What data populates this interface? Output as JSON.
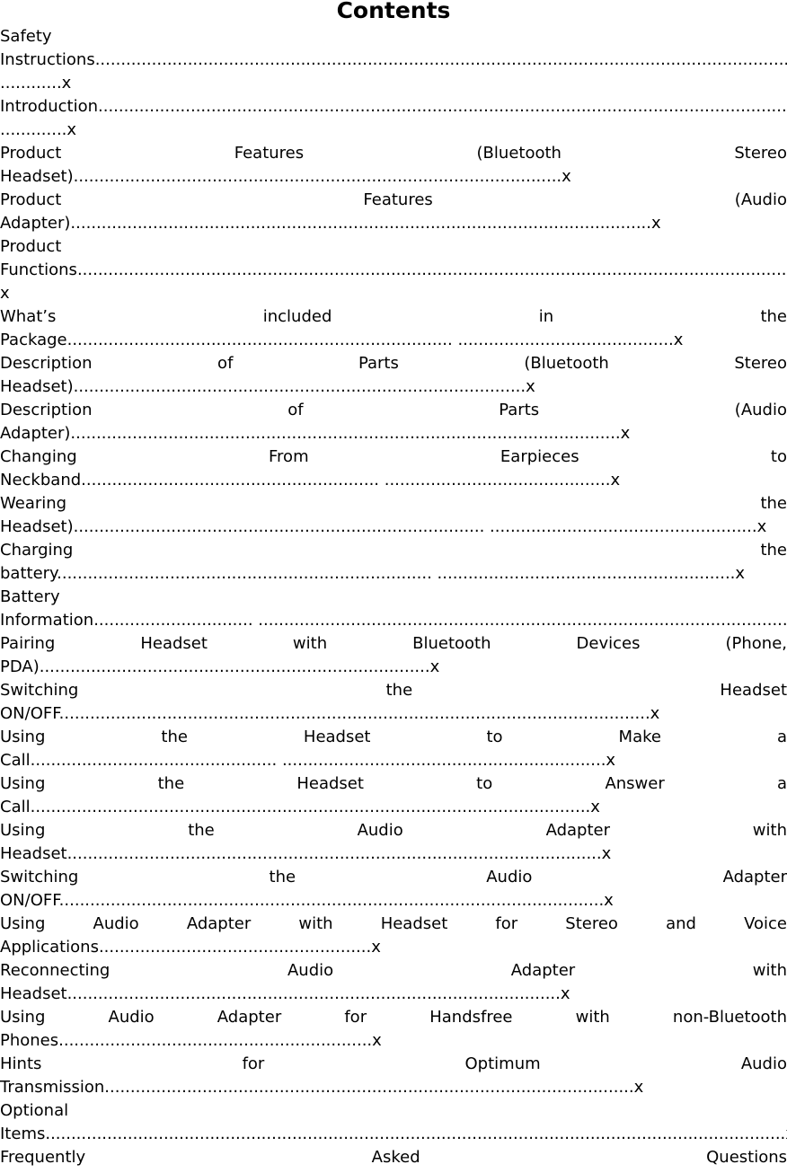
{
  "title": "Contents",
  "entries": [
    {
      "lines": [
        "Safety",
        "Instructions..........................................................................................................................................",
        "............x"
      ]
    },
    {
      "lines": [
        "Introduction.......................................................................................................................................",
        ".............x"
      ]
    },
    {
      "lines": [
        "Product Features (Bluetooth Stereo",
        "Headset)...............................................................................................x"
      ]
    },
    {
      "lines": [
        "Product Features (Audio",
        "Adapter).................................................................................................................x"
      ]
    },
    {
      "lines": [
        "Product",
        "Functions............................................................................................................................................",
        "x"
      ]
    },
    {
      "lines": [
        "What’s included in the",
        "Package........................................................................... ..........................................x"
      ]
    },
    {
      "lines": [
        "Description of Parts (Bluetooth Stereo",
        "Headset)........................................................................................x"
      ]
    },
    {
      "lines": [
        "Description of Parts (Audio",
        "Adapter)...........................................................................................................x"
      ]
    },
    {
      "lines": [
        "Changing From Earpieces to",
        "Neckband.......................................................... ............................................x"
      ]
    },
    {
      "lines": [
        "Wearing the",
        "Headset)................................................................................ ....................................................x"
      ]
    },
    {
      "lines": [
        "Charging the",
        "battery......................................................................... ..........................................................x"
      ]
    },
    {
      "lines": [
        "Battery",
        "Information............................... .......................................................................................................x"
      ]
    },
    {
      "lines": [
        "Pairing Headset with Bluetooth Devices (Phone,",
        "PDA)............................................................................x"
      ]
    },
    {
      "lines": [
        "Switching the Headset",
        "ON/OFF...................................................................................................................x"
      ]
    },
    {
      "lines": [
        "Using the Headset to Make a",
        "Call................................................ ...............................................................x"
      ]
    },
    {
      "lines": [
        "Using the Headset to Answer a",
        "Call.............................................................................................................x"
      ]
    },
    {
      "lines": [
        "Using the Audio Adapter with",
        "Headset........................................................................................................x"
      ]
    },
    {
      "lines": [
        "Switching the Audio Adapter",
        "ON/OFF..........................................................................................................x"
      ]
    },
    {
      "lines": [
        "Using Audio Adapter with Headset for Stereo and Voice",
        "Applications.....................................................x"
      ]
    },
    {
      "lines": [
        "Reconnecting Audio Adapter with",
        "Headset................................................................................................x"
      ]
    },
    {
      "lines": [
        "Using Audio Adapter for Handsfree with non-Bluetooth",
        "Phones.............................................................x"
      ]
    },
    {
      "lines": [
        "Hints for Optimum Audio",
        "Transmission.......................................................................................................x"
      ]
    },
    {
      "lines": [
        "Optional",
        "Items................................................................................................................................................x"
      ]
    },
    {
      "lines": [
        "Frequently Asked Questions"
      ]
    }
  ]
}
